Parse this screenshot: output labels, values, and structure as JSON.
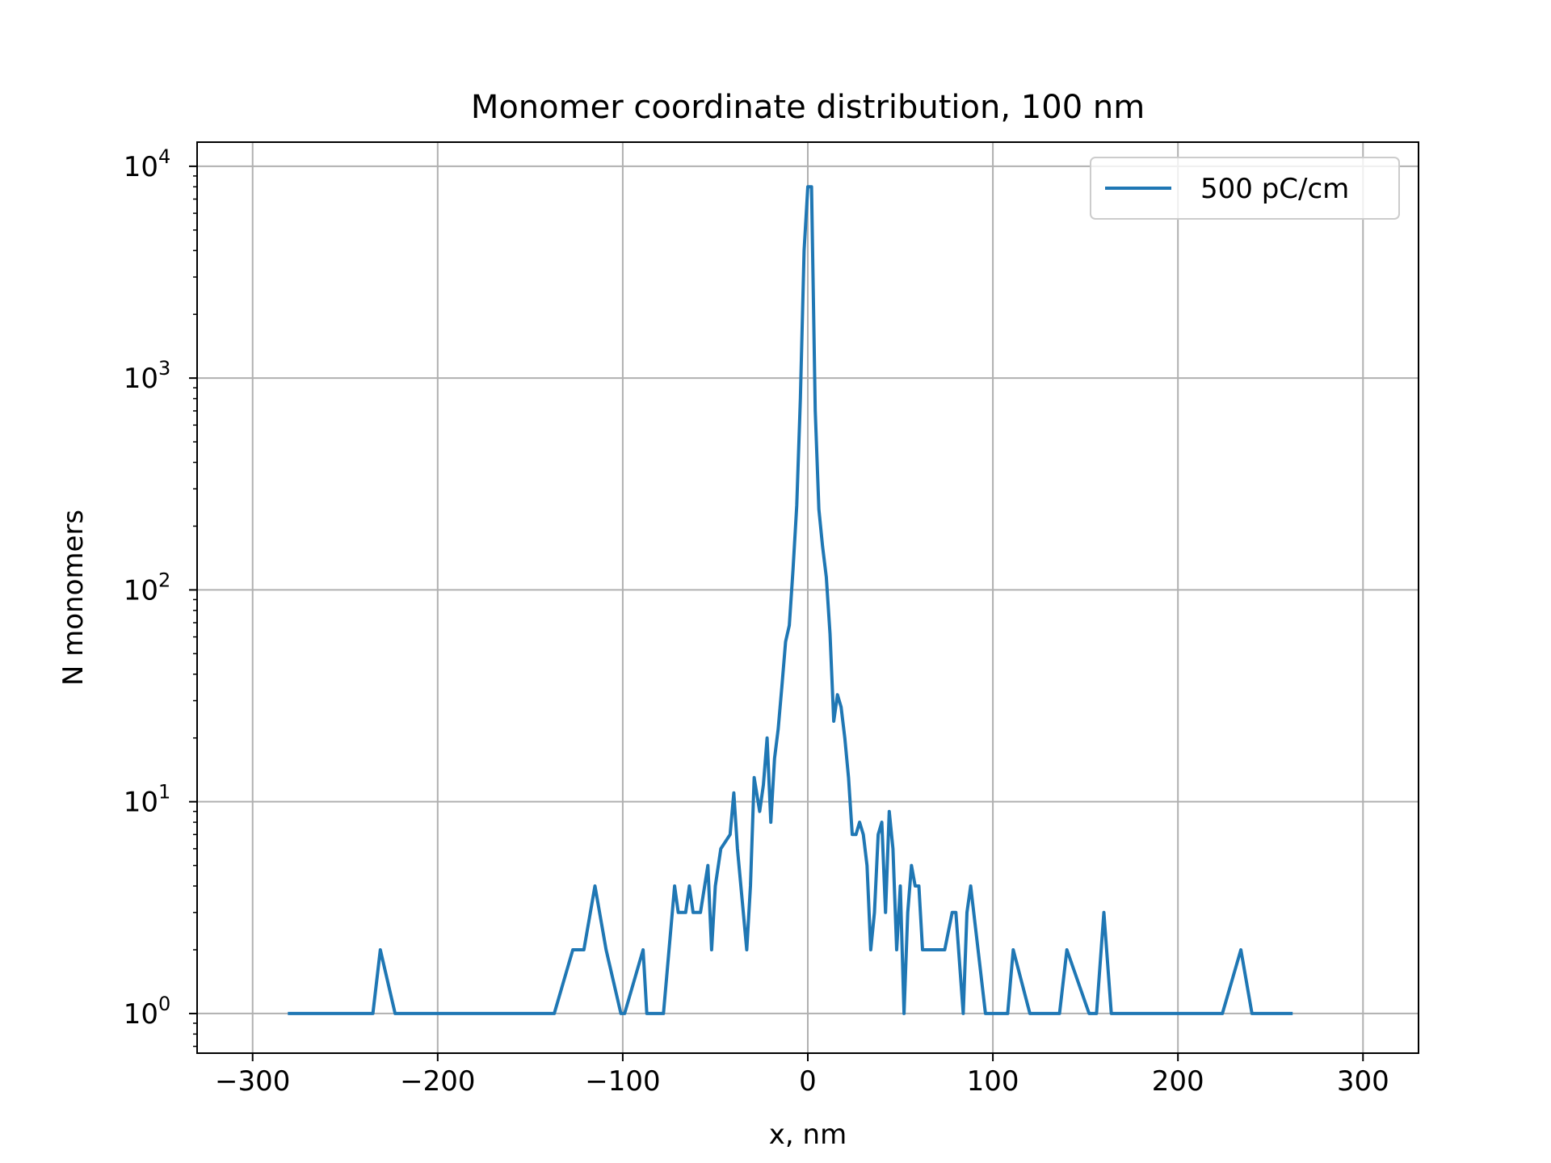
{
  "chart_data": {
    "type": "line",
    "title": "Monomer coordinate distribution, 100 nm",
    "xlabel": "x, nm",
    "ylabel": "N monomers",
    "xlim": [
      -330,
      330
    ],
    "ylim": [
      0.65,
      13000
    ],
    "yscale": "log",
    "grid": true,
    "legend_position": "top-right",
    "xticks": [
      -300,
      -200,
      -100,
      0,
      100,
      200,
      300
    ],
    "xtick_labels": [
      "−300",
      "−200",
      "−100",
      "0",
      "100",
      "200",
      "300"
    ],
    "yticks": [
      1,
      10,
      100,
      1000,
      10000
    ],
    "ytick_labels": [
      {
        "base": "10",
        "exp": "0"
      },
      {
        "base": "10",
        "exp": "1"
      },
      {
        "base": "10",
        "exp": "2"
      },
      {
        "base": "10",
        "exp": "3"
      },
      {
        "base": "10",
        "exp": "4"
      }
    ],
    "series": [
      {
        "name": "500 pC/cm",
        "color": "#1f77b4",
        "points": [
          [
            -281,
            1
          ],
          [
            -271,
            1
          ],
          [
            -263,
            1
          ],
          [
            -258,
            1
          ],
          [
            -256,
            1
          ],
          [
            -253,
            1
          ],
          [
            -235,
            1
          ],
          [
            -231,
            2
          ],
          [
            -223,
            1
          ],
          [
            -221,
            1
          ],
          [
            -201,
            1
          ],
          [
            -187,
            1
          ],
          [
            -178,
            1
          ],
          [
            -175,
            1
          ],
          [
            -172,
            1
          ],
          [
            -169,
            1
          ],
          [
            -139,
            1
          ],
          [
            -137,
            1
          ],
          [
            -127,
            2
          ],
          [
            -121,
            2
          ],
          [
            -115,
            4
          ],
          [
            -109,
            2
          ],
          [
            -101,
            1
          ],
          [
            -99,
            1
          ],
          [
            -89,
            2
          ],
          [
            -87,
            1
          ],
          [
            -85,
            1
          ],
          [
            -82,
            1
          ],
          [
            -78,
            1
          ],
          [
            -72,
            4
          ],
          [
            -70,
            3
          ],
          [
            -66,
            3
          ],
          [
            -64,
            4
          ],
          [
            -62,
            3
          ],
          [
            -58,
            3
          ],
          [
            -54,
            5
          ],
          [
            -52,
            2
          ],
          [
            -50,
            4
          ],
          [
            -47,
            6
          ],
          [
            -42,
            7
          ],
          [
            -40,
            11
          ],
          [
            -38,
            6
          ],
          [
            -33,
            2
          ],
          [
            -31,
            4
          ],
          [
            -29,
            13
          ],
          [
            -26,
            9
          ],
          [
            -24,
            12
          ],
          [
            -22,
            20
          ],
          [
            -20,
            8
          ],
          [
            -18,
            16
          ],
          [
            -16,
            22
          ],
          [
            -14,
            35
          ],
          [
            -12,
            57
          ],
          [
            -10,
            68
          ],
          [
            -8,
            125
          ],
          [
            -6,
            250
          ],
          [
            -4,
            800
          ],
          [
            -2,
            4000
          ],
          [
            0,
            8000
          ],
          [
            2,
            8000
          ],
          [
            4,
            700
          ],
          [
            6,
            240
          ],
          [
            8,
            160
          ],
          [
            10,
            115
          ],
          [
            12,
            62
          ],
          [
            14,
            24
          ],
          [
            16,
            32
          ],
          [
            18,
            28
          ],
          [
            20,
            20
          ],
          [
            22,
            13
          ],
          [
            24,
            7
          ],
          [
            26,
            7
          ],
          [
            28,
            8
          ],
          [
            30,
            7
          ],
          [
            32,
            5
          ],
          [
            34,
            2
          ],
          [
            36,
            3
          ],
          [
            38,
            7
          ],
          [
            40,
            8
          ],
          [
            42,
            3
          ],
          [
            44,
            9
          ],
          [
            46,
            6
          ],
          [
            48,
            2
          ],
          [
            50,
            4
          ],
          [
            52,
            1
          ],
          [
            54,
            3
          ],
          [
            56,
            5
          ],
          [
            58,
            4
          ],
          [
            60,
            4
          ],
          [
            62,
            2
          ],
          [
            66,
            2
          ],
          [
            70,
            2
          ],
          [
            72,
            2
          ],
          [
            74,
            2
          ],
          [
            78,
            3
          ],
          [
            80,
            3
          ],
          [
            84,
            1
          ],
          [
            86,
            3
          ],
          [
            88,
            4
          ],
          [
            96,
            1
          ],
          [
            104,
            1
          ],
          [
            108,
            1
          ],
          [
            111,
            2
          ],
          [
            120,
            1
          ],
          [
            136,
            1
          ],
          [
            140,
            2
          ],
          [
            152,
            1
          ],
          [
            156,
            1
          ],
          [
            160,
            3
          ],
          [
            164,
            1
          ],
          [
            180,
            1
          ],
          [
            182,
            1
          ],
          [
            186,
            1
          ],
          [
            190,
            1
          ],
          [
            196,
            1
          ],
          [
            222,
            1
          ],
          [
            224,
            1
          ],
          [
            234,
            2
          ],
          [
            240,
            1
          ],
          [
            247,
            1
          ],
          [
            249,
            1
          ],
          [
            254,
            1
          ],
          [
            262,
            1
          ]
        ]
      }
    ]
  }
}
